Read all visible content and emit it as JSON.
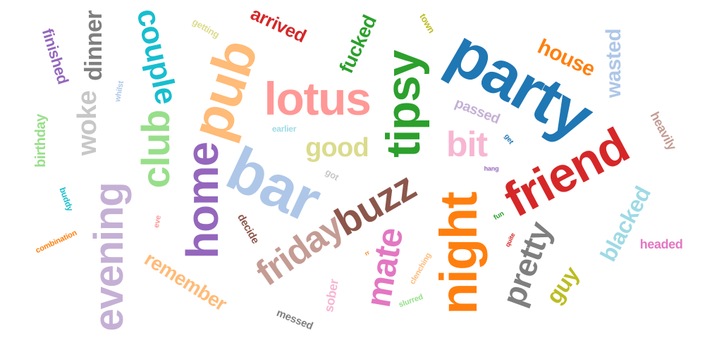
{
  "words": [
    {
      "text": "party",
      "color": "#1f77b4"
    },
    {
      "text": "friend",
      "color": "#d62728"
    },
    {
      "text": "bar",
      "color": "#aec7e8"
    },
    {
      "text": "night",
      "color": "#ff7f0e"
    },
    {
      "text": "tipsy",
      "color": "#2ca02c"
    },
    {
      "text": "pub",
      "color": "#ffbb78"
    },
    {
      "text": "lotus",
      "color": "#ff9896"
    },
    {
      "text": "home",
      "color": "#9467bd"
    },
    {
      "text": "evening",
      "color": "#c5b0d5"
    },
    {
      "text": "club",
      "color": "#98df8a"
    },
    {
      "text": "buzz",
      "color": "#8c564b"
    },
    {
      "text": "friday",
      "color": "#c49c94"
    },
    {
      "text": "mate",
      "color": "#e377c2"
    },
    {
      "text": "pretty",
      "color": "#7f7f7f"
    },
    {
      "text": "couple",
      "color": "#17becf"
    },
    {
      "text": "bit",
      "color": "#f7b6d2"
    },
    {
      "text": "good",
      "color": "#dbdb8d"
    },
    {
      "text": "dinner",
      "color": "#7f7f7f"
    },
    {
      "text": "woke",
      "color": "#c7c7c7"
    },
    {
      "text": "blacked",
      "color": "#9edae5"
    },
    {
      "text": "house",
      "color": "#ff7f0e"
    },
    {
      "text": "wasted",
      "color": "#aec7e8"
    },
    {
      "text": "guy",
      "color": "#bcbd22"
    },
    {
      "text": "remember",
      "color": "#ffbb78"
    },
    {
      "text": "fucked",
      "color": "#2ca02c"
    },
    {
      "text": "arrived",
      "color": "#d62728"
    },
    {
      "text": "finished",
      "color": "#9467bd"
    },
    {
      "text": "birthday",
      "color": "#98df8a"
    },
    {
      "text": "passed",
      "color": "#c5b0d5"
    },
    {
      "text": "heavily",
      "color": "#c49c94"
    },
    {
      "text": "headed",
      "color": "#e377c2"
    },
    {
      "text": "sober",
      "color": "#f7b6d2"
    },
    {
      "text": "messed",
      "color": "#7f7f7f"
    },
    {
      "text": "decide",
      "color": "#8c564b"
    },
    {
      "text": "got",
      "color": "#c7c7c7"
    },
    {
      "text": "getting",
      "color": "#dbdb8d"
    },
    {
      "text": "town",
      "color": "#bcbd22"
    },
    {
      "text": "earlier",
      "color": "#9edae5"
    },
    {
      "text": "whilst",
      "color": "#aec7e8"
    },
    {
      "text": "buddy",
      "color": "#17becf"
    },
    {
      "text": "combination",
      "color": "#ff7f0e"
    },
    {
      "text": "eve",
      "color": "#ff9896"
    },
    {
      "text": "clenching",
      "color": "#ffbb78"
    },
    {
      "text": "slurred",
      "color": "#98df8a"
    },
    {
      "text": "get",
      "color": "#1f77b4"
    },
    {
      "text": "hang",
      "color": "#9467bd"
    },
    {
      "text": "fun",
      "color": "#2ca02c"
    },
    {
      "text": "quite",
      "color": "#d62728"
    },
    {
      "text": "rr",
      "color": "#ff7f0e"
    }
  ]
}
